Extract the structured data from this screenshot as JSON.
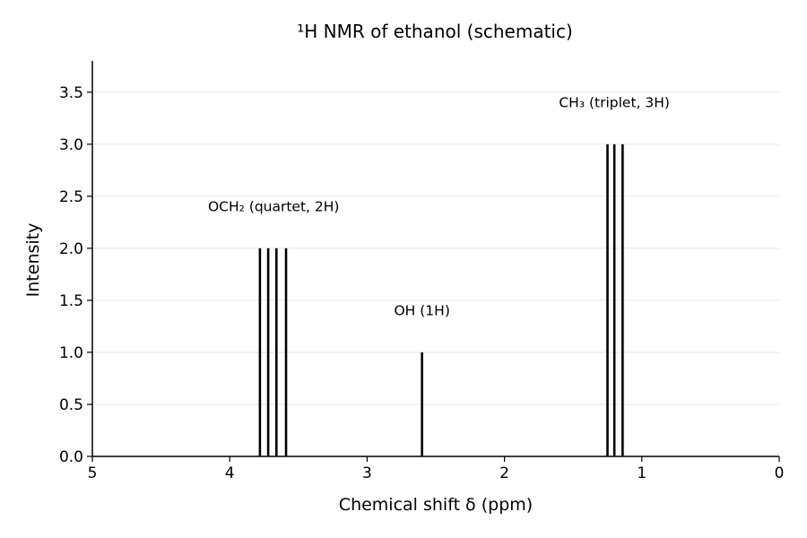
{
  "chart_data": {
    "type": "stem",
    "title": "¹H NMR of ethanol (schematic)",
    "xlabel": "Chemical shift δ (ppm)",
    "ylabel": "Intensity",
    "xlim": [
      5,
      0
    ],
    "ylim": [
      0,
      3.8
    ],
    "x_reversed": true,
    "xticks": [
      5,
      4,
      3,
      2,
      1,
      0
    ],
    "yticks": [
      0.0,
      0.5,
      1.0,
      1.5,
      2.0,
      2.5,
      3.0,
      3.5
    ],
    "grid": "horizontal",
    "peaks": [
      {
        "x": 3.78,
        "y": 2.0
      },
      {
        "x": 3.72,
        "y": 2.0
      },
      {
        "x": 3.66,
        "y": 2.0
      },
      {
        "x": 3.59,
        "y": 2.0
      },
      {
        "x": 2.6,
        "y": 1.0
      },
      {
        "x": 1.25,
        "y": 3.0
      },
      {
        "x": 1.2,
        "y": 3.0
      },
      {
        "x": 1.14,
        "y": 3.0
      }
    ],
    "annotations": [
      {
        "text": "OCH₂ (quartet, 2H)",
        "x": 3.68,
        "y": 2.4
      },
      {
        "text": "OH (1H)",
        "x": 2.6,
        "y": 1.4
      },
      {
        "text": "CH₃ (triplet, 3H)",
        "x": 1.2,
        "y": 3.4
      }
    ]
  }
}
